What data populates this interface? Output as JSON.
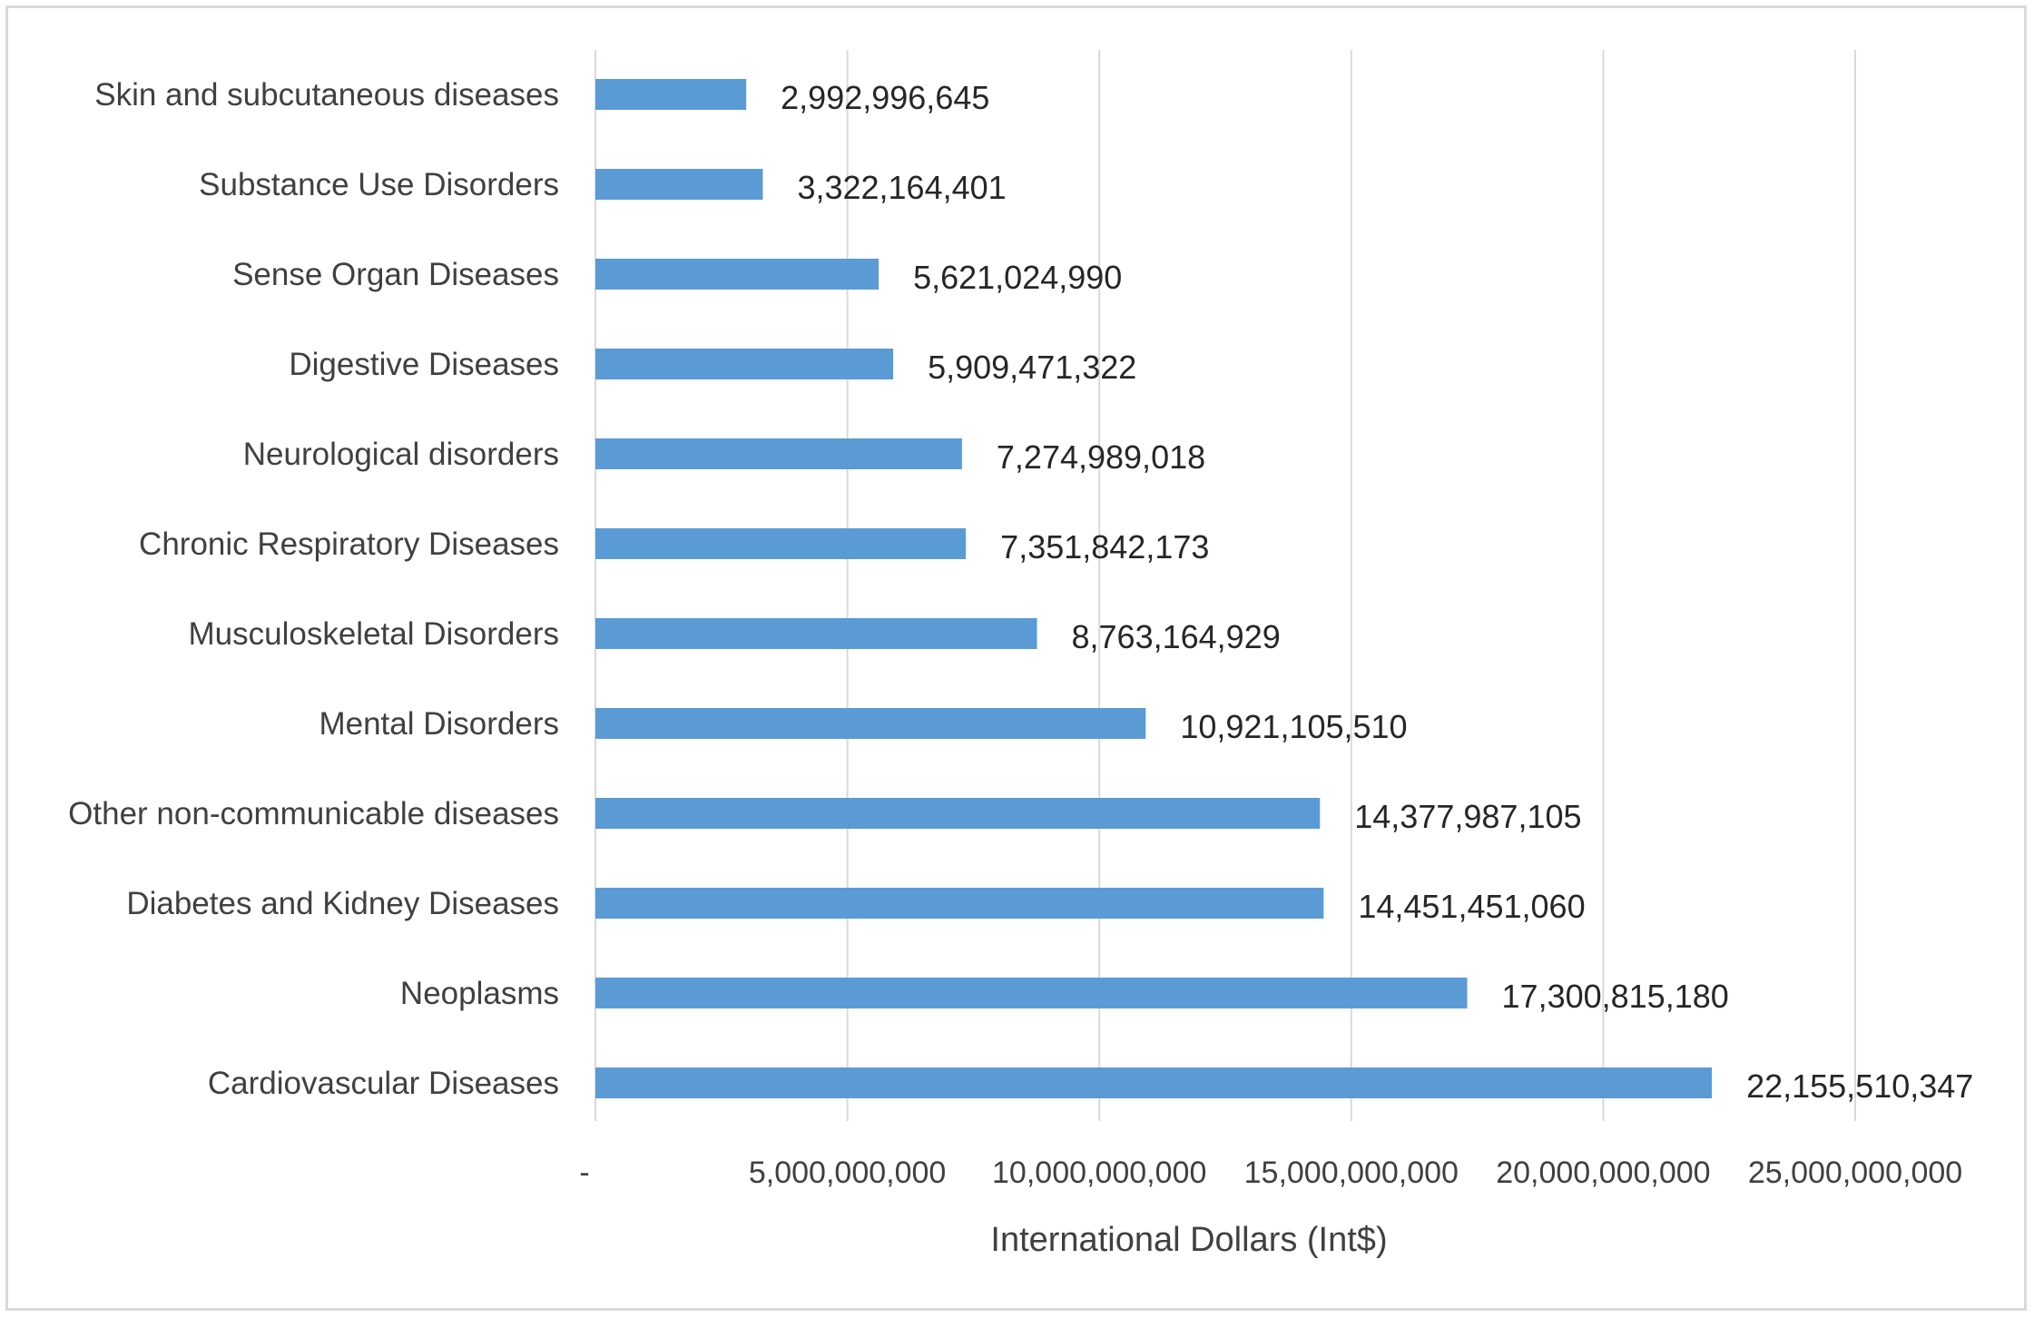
{
  "chart_data": {
    "type": "bar",
    "orientation": "horizontal",
    "categories": [
      "Skin and subcutaneous diseases",
      "Substance Use Disorders",
      "Sense Organ Diseases",
      "Digestive Diseases",
      "Neurological disorders",
      "Chronic Respiratory Diseases",
      "Musculoskeletal Disorders",
      "Mental Disorders",
      "Other non-communicable diseases",
      "Diabetes and Kidney Diseases",
      "Neoplasms",
      "Cardiovascular Diseases"
    ],
    "values": [
      2992996645,
      3322164401,
      5621024990,
      5909471322,
      7274989018,
      7351842173,
      8763164929,
      10921105510,
      14377987105,
      14451451060,
      17300815180,
      22155510347
    ],
    "value_labels": [
      "2,992,996,645",
      "3,322,164,401",
      "5,621,024,990",
      "5,909,471,322",
      "7,274,989,018",
      "7,351,842,173",
      "8,763,164,929",
      "10,921,105,510",
      "14,377,987,105",
      "14,451,451,060",
      "17,300,815,180",
      "22,155,510,347"
    ],
    "x_ticks": [
      0,
      5000000000,
      10000000000,
      15000000000,
      20000000000,
      25000000000
    ],
    "x_tick_labels": [
      "-",
      "5,000,000,000",
      "10,000,000,000",
      "15,000,000,000",
      "20,000,000,000",
      "25,000,000,000"
    ],
    "xlim": [
      0,
      25000000000
    ],
    "xlabel": "International Dollars (Int$)",
    "ylabel": "",
    "title": "",
    "grid": true,
    "legend": "none",
    "bar_color": "#5b9bd5",
    "grid_color": "#d9d9d9"
  }
}
